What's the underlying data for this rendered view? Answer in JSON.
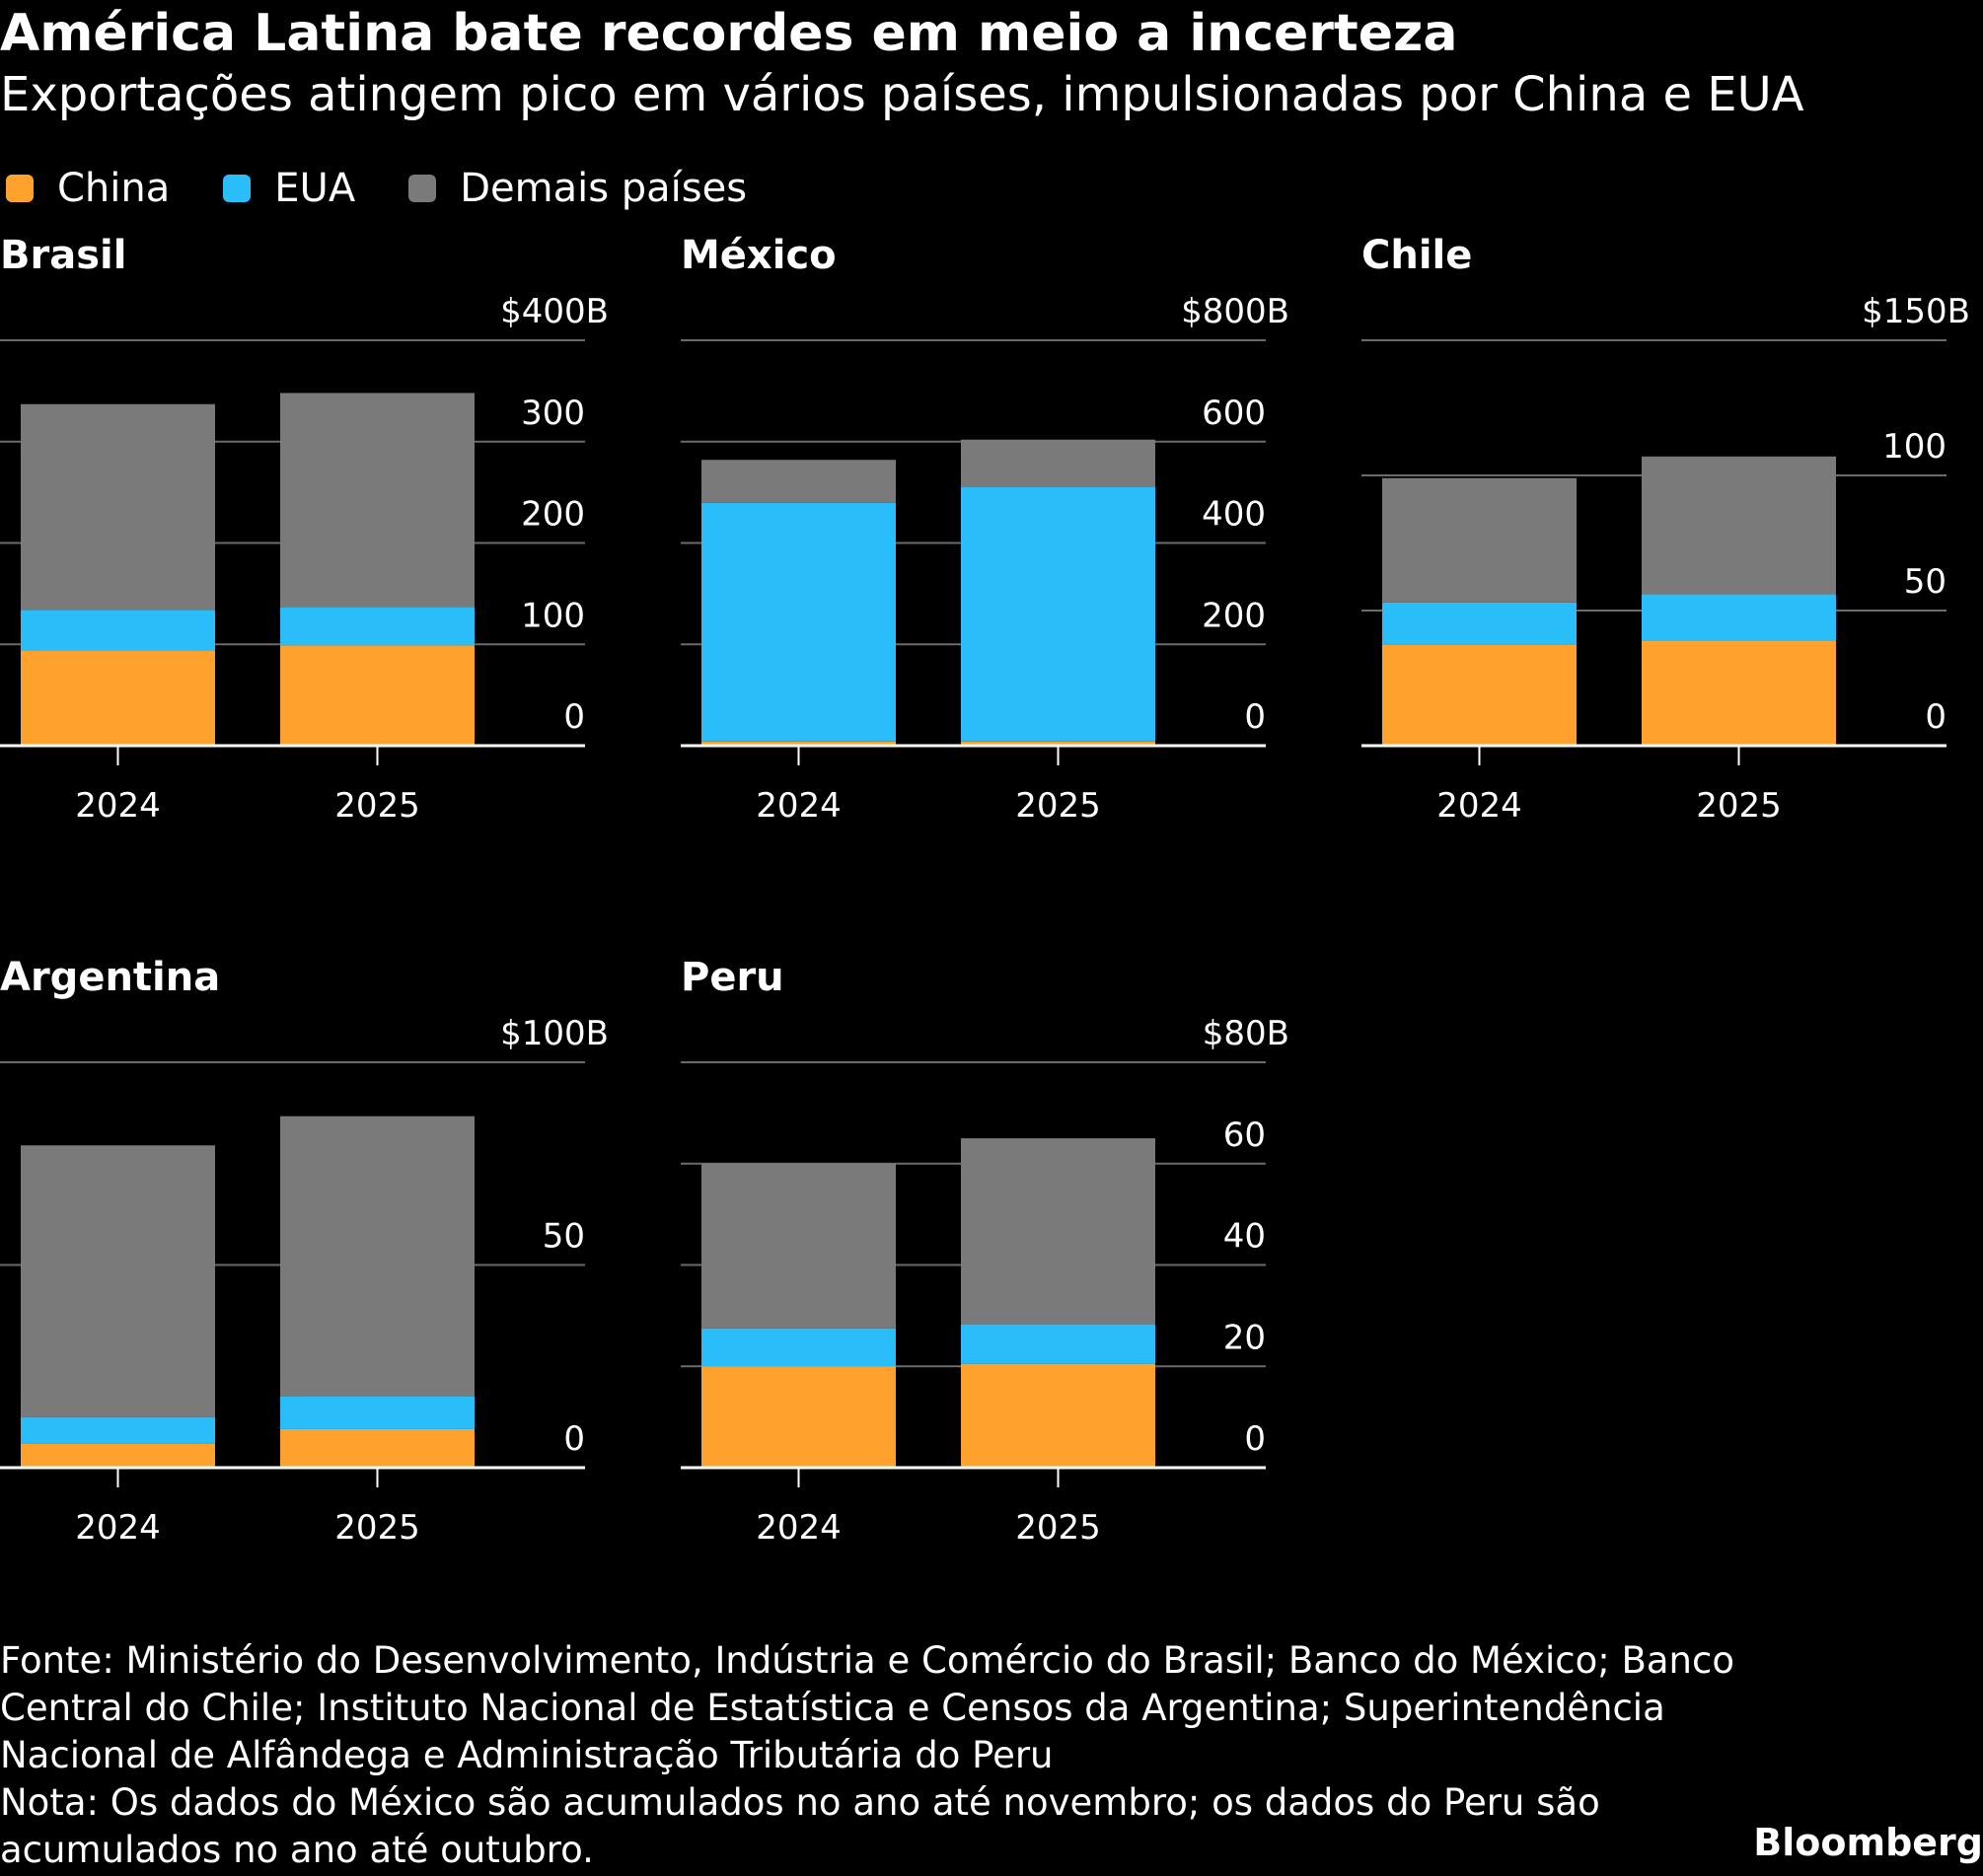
{
  "title": "América Latina bate recordes em meio a incerteza",
  "subtitle": "Exportações atingem pico em vários países, impulsionadas por China e EUA",
  "legend": [
    {
      "label": "China",
      "color": "#ffa12d"
    },
    {
      "label": "EUA",
      "color": "#29bdfa"
    },
    {
      "label": "Demais países",
      "color": "#7a7a7a"
    }
  ],
  "chart_data": [
    {
      "type": "bar",
      "stacked": true,
      "title": "Brasil",
      "categories": [
        "2024",
        "2025"
      ],
      "ylim": [
        0,
        400
      ],
      "yticks": [
        0,
        100,
        200,
        300,
        400
      ],
      "yticklabels": [
        "0",
        "100",
        "200",
        "300",
        "$400B"
      ],
      "series": [
        {
          "name": "China",
          "values": [
            94,
            99
          ]
        },
        {
          "name": "EUA",
          "values": [
            40,
            38
          ]
        },
        {
          "name": "Demais países",
          "values": [
            203,
            211
          ]
        }
      ]
    },
    {
      "type": "bar",
      "stacked": true,
      "title": "México",
      "categories": [
        "2024",
        "2025"
      ],
      "ylim": [
        0,
        800
      ],
      "yticks": [
        0,
        200,
        400,
        600,
        800
      ],
      "yticklabels": [
        "0",
        "200",
        "400",
        "600",
        "$800B"
      ],
      "series": [
        {
          "name": "China",
          "values": [
            8,
            8
          ]
        },
        {
          "name": "EUA",
          "values": [
            471,
            502
          ]
        },
        {
          "name": "Demais países",
          "values": [
            85,
            94
          ]
        }
      ]
    },
    {
      "type": "bar",
      "stacked": true,
      "title": "Chile",
      "categories": [
        "2024",
        "2025"
      ],
      "ylim": [
        0,
        150
      ],
      "yticks": [
        0,
        50,
        100,
        150
      ],
      "yticklabels": [
        "0",
        "50",
        "100",
        "$150B"
      ],
      "series": [
        {
          "name": "China",
          "values": [
            37.5,
            39
          ]
        },
        {
          "name": "EUA",
          "values": [
            15.5,
            17
          ]
        },
        {
          "name": "Demais países",
          "values": [
            46,
            51
          ]
        }
      ]
    },
    {
      "type": "bar",
      "stacked": true,
      "title": "Argentina",
      "categories": [
        "2024",
        "2025"
      ],
      "ylim": [
        0,
        100
      ],
      "yticks": [
        0,
        50,
        100
      ],
      "yticklabels": [
        "0",
        "50",
        "$100B"
      ],
      "series": [
        {
          "name": "China",
          "values": [
            6,
            9.5
          ]
        },
        {
          "name": "EUA",
          "values": [
            6.5,
            8.2
          ]
        },
        {
          "name": "Demais países",
          "values": [
            67,
            69
          ]
        }
      ]
    },
    {
      "type": "bar",
      "stacked": true,
      "title": "Peru",
      "categories": [
        "2024",
        "2025"
      ],
      "ylim": [
        0,
        80
      ],
      "yticks": [
        0,
        20,
        40,
        60,
        80
      ],
      "yticklabels": [
        "0",
        "20",
        "40",
        "60",
        "$80B"
      ],
      "series": [
        {
          "name": "China",
          "values": [
            20,
            20.5
          ]
        },
        {
          "name": "EUA",
          "values": [
            7.5,
            7.8
          ]
        },
        {
          "name": "Demais países",
          "values": [
            32.5,
            36.7
          ]
        }
      ]
    }
  ],
  "source_lines": [
    "Fonte: Ministério do Desenvolvimento, Indústria e Comércio do Brasil; Banco do México; Banco",
    "Central do Chile; Instituto Nacional de Estatística e Censos da Argentina; Superintendência",
    "Nacional de Alfândega e Administração Tributária do Peru",
    "Nota: Os dados do México são acumulados no ano até novembro; os dados do Peru são",
    "acumulados no ano até outubro."
  ],
  "brand": "Bloomberg"
}
